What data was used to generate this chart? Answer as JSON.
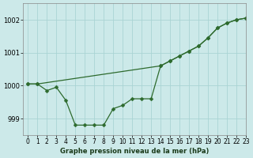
{
  "xlabel": "Graphe pression niveau de la mer (hPa)",
  "xlim": [
    -0.5,
    23
  ],
  "ylim": [
    998.5,
    1002.5
  ],
  "yticks": [
    999,
    1000,
    1001,
    1002
  ],
  "xticks": [
    0,
    1,
    2,
    3,
    4,
    5,
    6,
    7,
    8,
    9,
    10,
    11,
    12,
    13,
    14,
    15,
    16,
    17,
    18,
    19,
    20,
    21,
    22,
    23
  ],
  "background_color": "#cce9e9",
  "grid_color": "#aad4d4",
  "line_color": "#2d6a2d",
  "line_straight": {
    "x": [
      0,
      1,
      14,
      15,
      16,
      17,
      18,
      19,
      20,
      21,
      22,
      23
    ],
    "y": [
      1000.05,
      1000.05,
      1000.6,
      1000.75,
      1000.9,
      1001.05,
      1001.2,
      1001.45,
      1001.75,
      1001.9,
      1002.0,
      1002.05
    ]
  },
  "line_curved": {
    "x": [
      0,
      1,
      2,
      3,
      4,
      5,
      6,
      7,
      8,
      9,
      10,
      11,
      12,
      13,
      14,
      15,
      16,
      17,
      18,
      19,
      20,
      21,
      22,
      23
    ],
    "y": [
      1000.05,
      1000.05,
      999.85,
      999.95,
      999.55,
      998.8,
      998.8,
      998.8,
      998.8,
      999.3,
      999.4,
      999.6,
      999.6,
      999.6,
      1000.6,
      1000.75,
      1000.9,
      1001.05,
      1001.2,
      1001.45,
      1001.75,
      1001.9,
      1002.0,
      1002.05
    ]
  },
  "marker": "D",
  "markersize": 2.5,
  "linewidth": 0.9,
  "tick_fontsize": 5.5,
  "xlabel_fontsize": 6.0
}
